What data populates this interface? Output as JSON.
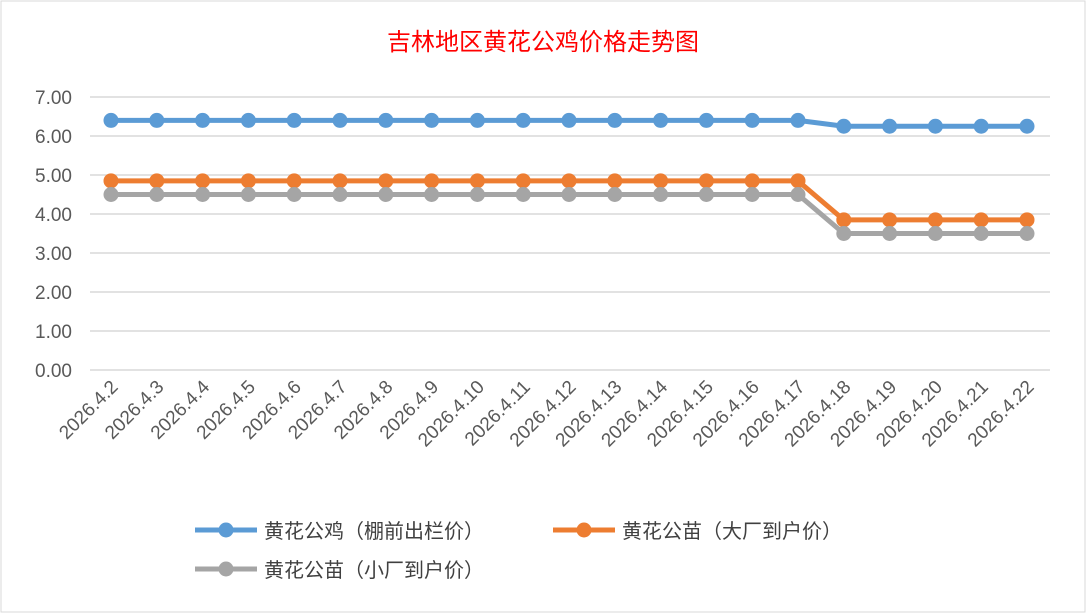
{
  "chart_data": {
    "type": "line",
    "title": "吉林地区黄花公鸡价格走势图",
    "xlabel": "",
    "ylabel": "",
    "ylim": [
      0,
      7
    ],
    "yticks": [
      "0.00",
      "1.00",
      "2.00",
      "3.00",
      "4.00",
      "5.00",
      "6.00",
      "7.00"
    ],
    "grid": true,
    "legend_position": "bottom",
    "categories": [
      "2026.4.2",
      "2026.4.3",
      "2026.4.4",
      "2026.4.5",
      "2026.4.6",
      "2026.4.7",
      "2026.4.8",
      "2026.4.9",
      "2026.4.10",
      "2026.4.11",
      "2026.4.12",
      "2026.4.13",
      "2026.4.14",
      "2026.4.15",
      "2026.4.16",
      "2026.4.17",
      "2026.4.18",
      "2026.4.19",
      "2026.4.20",
      "2026.4.21",
      "2026.4.22"
    ],
    "series": [
      {
        "name": "黄花公鸡（棚前出栏价）",
        "color": "#5b9bd5",
        "values": [
          6.4,
          6.4,
          6.4,
          6.4,
          6.4,
          6.4,
          6.4,
          6.4,
          6.4,
          6.4,
          6.4,
          6.4,
          6.4,
          6.4,
          6.4,
          6.4,
          6.25,
          6.25,
          6.25,
          6.25,
          6.25
        ]
      },
      {
        "name": "黄花公苗（大厂到户价）",
        "color": "#ed7d31",
        "values": [
          4.85,
          4.85,
          4.85,
          4.85,
          4.85,
          4.85,
          4.85,
          4.85,
          4.85,
          4.85,
          4.85,
          4.85,
          4.85,
          4.85,
          4.85,
          4.85,
          3.85,
          3.85,
          3.85,
          3.85,
          3.85
        ]
      },
      {
        "name": "黄花公苗（小厂到户价）",
        "color": "#a5a5a5",
        "values": [
          4.5,
          4.5,
          4.5,
          4.5,
          4.5,
          4.5,
          4.5,
          4.5,
          4.5,
          4.5,
          4.5,
          4.5,
          4.5,
          4.5,
          4.5,
          4.5,
          3.5,
          3.5,
          3.5,
          3.5,
          3.5
        ]
      }
    ]
  }
}
